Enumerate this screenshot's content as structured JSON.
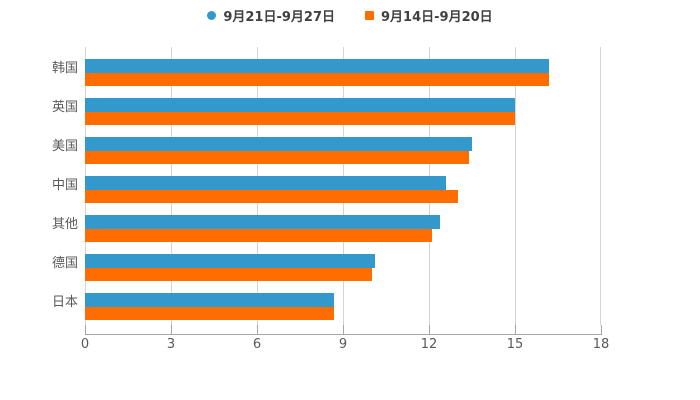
{
  "chart_data": {
    "type": "bar",
    "orientation": "horizontal",
    "title": "",
    "xlabel": "",
    "ylabel": "",
    "categories": [
      "韩国",
      "英国",
      "美国",
      "中国",
      "其他",
      "德国",
      "日本"
    ],
    "series": [
      {
        "name": "9月21日-9月27日",
        "marker": "circle",
        "color": "#3398CC",
        "values": [
          16.2,
          15.0,
          13.5,
          12.6,
          12.4,
          10.1,
          8.7
        ]
      },
      {
        "name": "9月14日-9月20日",
        "marker": "square",
        "color": "#FF6D00",
        "values": [
          16.2,
          15.0,
          13.4,
          13.0,
          12.1,
          10.0,
          8.7
        ]
      }
    ],
    "xlim": [
      0,
      18
    ],
    "x_ticks": [
      0,
      3,
      6,
      9,
      12,
      15,
      18
    ],
    "grid": true,
    "legend_position": "top"
  },
  "colors": {
    "background": "#FFFFFF",
    "grid_line": "#D4D4D4",
    "axis_line": "#A6A6A6",
    "tick_mark": "#A6A6A6",
    "tick_label": "#595959",
    "category_label": "#595959",
    "legend_text": "#404040"
  }
}
